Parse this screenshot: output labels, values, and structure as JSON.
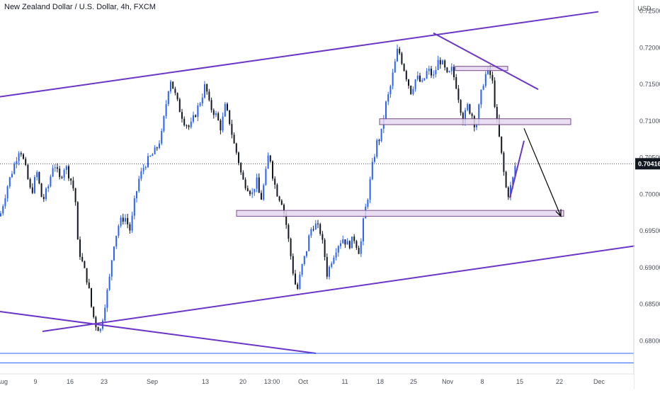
{
  "chart_title": "New Zealand Dollar / U.S. Dollar, 4h, FXCM",
  "currency_label": "USD",
  "current_price_label": "0.70416",
  "colors": {
    "up": "#2962ff",
    "down": "#131722",
    "trendline": "#6a35c9",
    "zone_fill": "#e4d7ef",
    "zone_stroke": "#7a4a8a",
    "hline": "#2962ff",
    "axis_text": "#4a4e59",
    "arrow": "#000000"
  },
  "chart_data": {
    "type": "candlestick",
    "title": "New Zealand Dollar / U.S. Dollar, 4h, FXCM",
    "ylabel": "USD",
    "ylim": [
      0.6755,
      0.7265
    ],
    "y_ticks": [
      "0.72500",
      "0.72000",
      "0.71500",
      "0.71000",
      "0.70500",
      "0.70000",
      "0.69500",
      "0.69000",
      "0.68500",
      "0.68000"
    ],
    "x_ticks": [
      "Aug",
      "9",
      "16",
      "23",
      "Sep",
      "13",
      "20",
      "13:00",
      "Oct",
      "11",
      "18",
      "25",
      "Nov",
      "8",
      "15",
      "22",
      "Dec"
    ],
    "current_price": 0.70416,
    "price_path": [
      [
        0,
        0.697
      ],
      [
        10,
        0.701
      ],
      [
        20,
        0.704
      ],
      [
        28,
        0.7065
      ],
      [
        36,
        0.7035
      ],
      [
        44,
        0.7
      ],
      [
        52,
        0.703
      ],
      [
        60,
        0.699
      ],
      [
        68,
        0.701
      ],
      [
        76,
        0.7045
      ],
      [
        84,
        0.702
      ],
      [
        92,
        0.704
      ],
      [
        100,
        0.702
      ],
      [
        106,
        0.7
      ],
      [
        110,
        0.693
      ],
      [
        118,
        0.69
      ],
      [
        124,
        0.688
      ],
      [
        130,
        0.684
      ],
      [
        136,
        0.682
      ],
      [
        142,
        0.6815
      ],
      [
        148,
        0.685
      ],
      [
        154,
        0.688
      ],
      [
        160,
        0.693
      ],
      [
        168,
        0.696
      ],
      [
        176,
        0.697
      ],
      [
        184,
        0.695
      ],
      [
        190,
        0.699
      ],
      [
        196,
        0.702
      ],
      [
        204,
        0.704
      ],
      [
        212,
        0.705
      ],
      [
        220,
        0.706
      ],
      [
        228,
        0.708
      ],
      [
        234,
        0.712
      ],
      [
        240,
        0.716
      ],
      [
        246,
        0.714
      ],
      [
        252,
        0.712
      ],
      [
        260,
        0.71
      ],
      [
        268,
        0.709
      ],
      [
        276,
        0.711
      ],
      [
        284,
        0.713
      ],
      [
        290,
        0.715
      ],
      [
        296,
        0.712
      ],
      [
        304,
        0.711
      ],
      [
        312,
        0.709
      ],
      [
        318,
        0.712
      ],
      [
        324,
        0.71
      ],
      [
        330,
        0.707
      ],
      [
        336,
        0.705
      ],
      [
        342,
        0.702
      ],
      [
        350,
        0.701
      ],
      [
        356,
        0.7
      ],
      [
        362,
        0.702
      ],
      [
        368,
        0.699
      ],
      [
        374,
        0.702
      ],
      [
        380,
        0.706
      ],
      [
        386,
        0.702
      ],
      [
        392,
        0.7
      ],
      [
        398,
        0.699
      ],
      [
        404,
        0.696
      ],
      [
        410,
        0.692
      ],
      [
        416,
        0.688
      ],
      [
        420,
        0.687
      ],
      [
        426,
        0.69
      ],
      [
        432,
        0.692
      ],
      [
        438,
        0.695
      ],
      [
        444,
        0.696
      ],
      [
        452,
        0.695
      ],
      [
        458,
        0.692
      ],
      [
        462,
        0.689
      ],
      [
        468,
        0.691
      ],
      [
        476,
        0.693
      ],
      [
        484,
        0.694
      ],
      [
        492,
        0.693
      ],
      [
        500,
        0.694
      ],
      [
        508,
        0.692
      ],
      [
        514,
        0.697
      ],
      [
        520,
        0.7
      ],
      [
        526,
        0.704
      ],
      [
        532,
        0.707
      ],
      [
        538,
        0.708
      ],
      [
        544,
        0.712
      ],
      [
        550,
        0.714
      ],
      [
        556,
        0.717
      ],
      [
        562,
        0.72
      ],
      [
        568,
        0.718
      ],
      [
        574,
        0.716
      ],
      [
        580,
        0.714
      ],
      [
        588,
        0.716
      ],
      [
        596,
        0.715
      ],
      [
        604,
        0.717
      ],
      [
        612,
        0.716
      ],
      [
        620,
        0.7185
      ],
      [
        626,
        0.7175
      ],
      [
        632,
        0.716
      ],
      [
        638,
        0.717
      ],
      [
        644,
        0.715
      ],
      [
        650,
        0.712
      ],
      [
        654,
        0.71
      ],
      [
        660,
        0.712
      ],
      [
        666,
        0.711
      ],
      [
        672,
        0.709
      ],
      [
        678,
        0.713
      ],
      [
        684,
        0.716
      ],
      [
        690,
        0.717
      ],
      [
        696,
        0.715
      ],
      [
        700,
        0.711
      ],
      [
        706,
        0.707
      ],
      [
        710,
        0.704
      ],
      [
        714,
        0.701
      ],
      [
        718,
        0.7
      ],
      [
        724,
        0.702
      ],
      [
        728,
        0.7042
      ]
    ],
    "zones": [
      {
        "y_top": 0.71745,
        "y_bottom": 0.717
      },
      {
        "y_top": 0.7103,
        "y_bottom": 0.7095
      },
      {
        "y_top": 0.6978,
        "y_bottom": 0.697
      }
    ],
    "trendlines": [
      {
        "p1": [
          0,
          0.7133
        ],
        "p2": [
          845,
          0.7249
        ]
      },
      {
        "p1": [
          60,
          0.6813
        ],
        "p2": [
          900,
          0.693
        ]
      },
      {
        "p1": [
          0,
          0.684
        ],
        "p2": [
          446,
          0.6783
        ]
      },
      {
        "p1": [
          612,
          0.722
        ],
        "p2": [
          760,
          0.7143
        ]
      },
      {
        "p1": [
          720,
          0.6995
        ],
        "p2": [
          740,
          0.7073
        ]
      }
    ],
    "hlines": [
      0.6783,
      0.677
    ],
    "arrow": {
      "from": [
        740,
        0.709
      ],
      "to": [
        792,
        0.697
      ]
    }
  }
}
